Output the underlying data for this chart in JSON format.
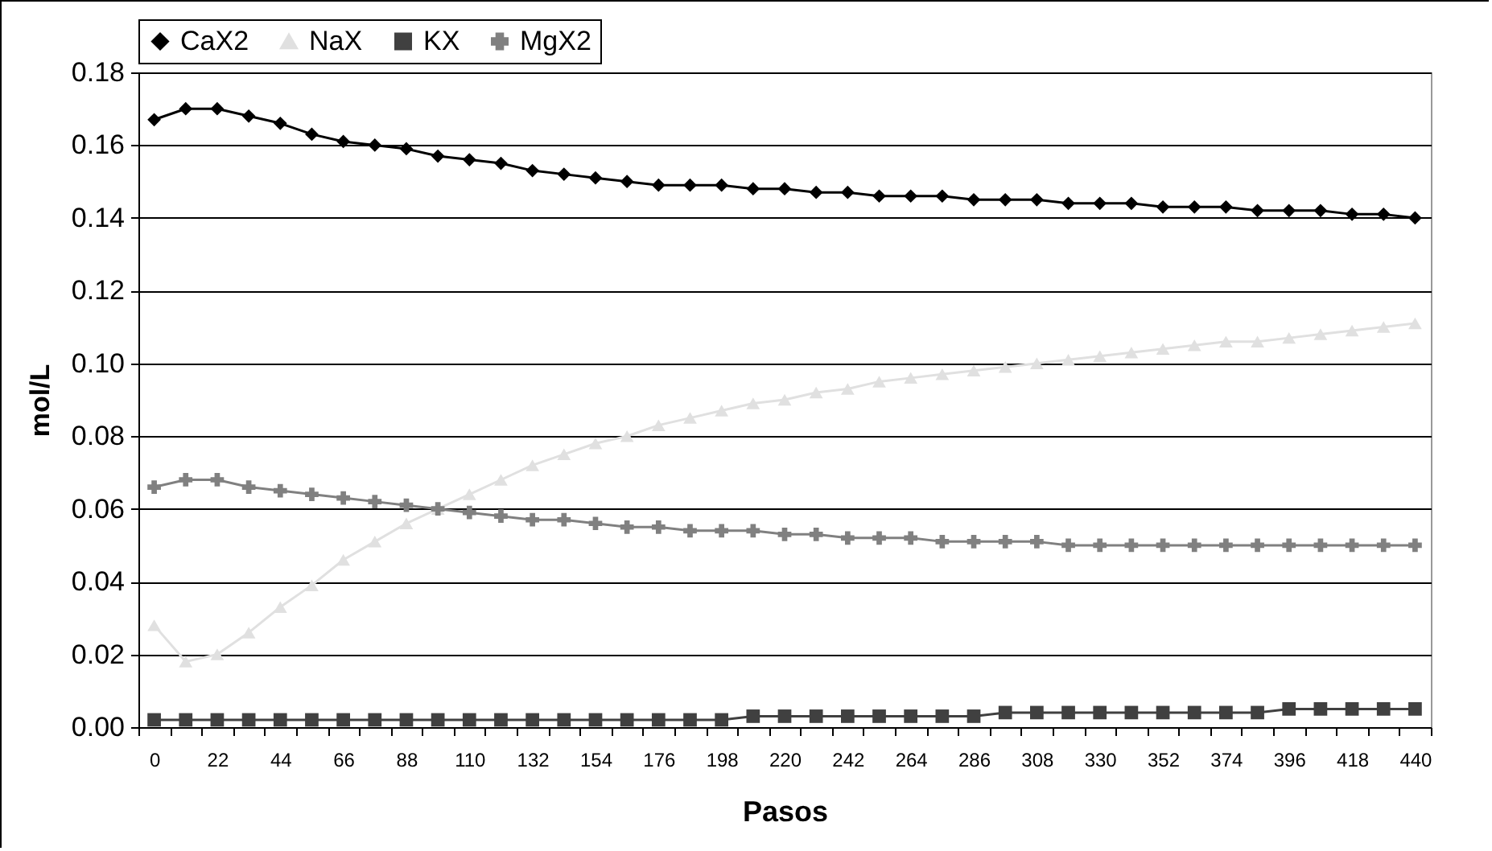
{
  "chart_data": {
    "type": "line",
    "xlabel": "Pasos",
    "ylabel": "mol/L",
    "categories": [
      "0",
      null,
      "22",
      null,
      "44",
      null,
      "66",
      null,
      "88",
      null,
      "110",
      null,
      "132",
      null,
      "154",
      null,
      "176",
      null,
      "198",
      null,
      "220",
      null,
      "242",
      null,
      "264",
      null,
      "286",
      null,
      "308",
      null,
      "330",
      null,
      "352",
      null,
      "374",
      null,
      "396",
      null,
      "418",
      null,
      "440"
    ],
    "ylim": [
      0,
      0.18
    ],
    "yticks": [
      {
        "value": 0,
        "label": "0.00"
      },
      {
        "value": 0.02,
        "label": "0.02"
      },
      {
        "value": 0.04,
        "label": "0.04"
      },
      {
        "value": 0.06,
        "label": "0.06"
      },
      {
        "value": 0.08,
        "label": "0.08"
      },
      {
        "value": 0.1,
        "label": "0.10"
      },
      {
        "value": 0.12,
        "label": "0.12"
      },
      {
        "value": 0.14,
        "label": "0.14"
      },
      {
        "value": 0.16,
        "label": "0.16"
      },
      {
        "value": 0.18,
        "label": "0.18"
      }
    ],
    "grid": "y",
    "legend": "top",
    "series": [
      {
        "name": "CaX2",
        "color": "#000000",
        "marker": "diamond",
        "values": [
          0.167,
          0.17,
          0.17,
          0.168,
          0.166,
          0.163,
          0.161,
          0.16,
          0.159,
          0.157,
          0.156,
          0.155,
          0.153,
          0.152,
          0.151,
          0.15,
          0.149,
          0.149,
          0.149,
          0.148,
          0.148,
          0.147,
          0.147,
          0.146,
          0.146,
          0.146,
          0.145,
          0.145,
          0.145,
          0.144,
          0.144,
          0.144,
          0.143,
          0.143,
          0.143,
          0.142,
          0.142,
          0.142,
          0.141,
          0.141,
          0.14
        ]
      },
      {
        "name": "NaX",
        "color": "#e0e0e0",
        "marker": "triangle",
        "values": [
          0.028,
          0.018,
          0.02,
          0.026,
          0.033,
          0.039,
          0.046,
          0.051,
          0.056,
          0.06,
          0.064,
          0.068,
          0.072,
          0.075,
          0.078,
          0.08,
          0.083,
          0.085,
          0.087,
          0.089,
          0.09,
          0.092,
          0.093,
          0.095,
          0.096,
          0.097,
          0.098,
          0.099,
          0.1,
          0.101,
          0.102,
          0.103,
          0.104,
          0.105,
          0.106,
          0.106,
          0.107,
          0.108,
          0.109,
          0.11,
          0.111
        ]
      },
      {
        "name": "KX",
        "color": "#404040",
        "marker": "square",
        "values": [
          0.002,
          0.002,
          0.002,
          0.002,
          0.002,
          0.002,
          0.002,
          0.002,
          0.002,
          0.002,
          0.002,
          0.002,
          0.002,
          0.002,
          0.002,
          0.002,
          0.002,
          0.002,
          0.002,
          0.003,
          0.003,
          0.003,
          0.003,
          0.003,
          0.003,
          0.003,
          0.003,
          0.004,
          0.004,
          0.004,
          0.004,
          0.004,
          0.004,
          0.004,
          0.004,
          0.004,
          0.005,
          0.005,
          0.005,
          0.005,
          0.005
        ]
      },
      {
        "name": "MgX2",
        "color": "#808080",
        "marker": "cross",
        "values": [
          0.066,
          0.068,
          0.068,
          0.066,
          0.065,
          0.064,
          0.063,
          0.062,
          0.061,
          0.06,
          0.059,
          0.058,
          0.057,
          0.057,
          0.056,
          0.055,
          0.055,
          0.054,
          0.054,
          0.054,
          0.053,
          0.053,
          0.052,
          0.052,
          0.052,
          0.051,
          0.051,
          0.051,
          0.051,
          0.05,
          0.05,
          0.05,
          0.05,
          0.05,
          0.05,
          0.05,
          0.05,
          0.05,
          0.05,
          0.05,
          0.05
        ]
      }
    ]
  }
}
